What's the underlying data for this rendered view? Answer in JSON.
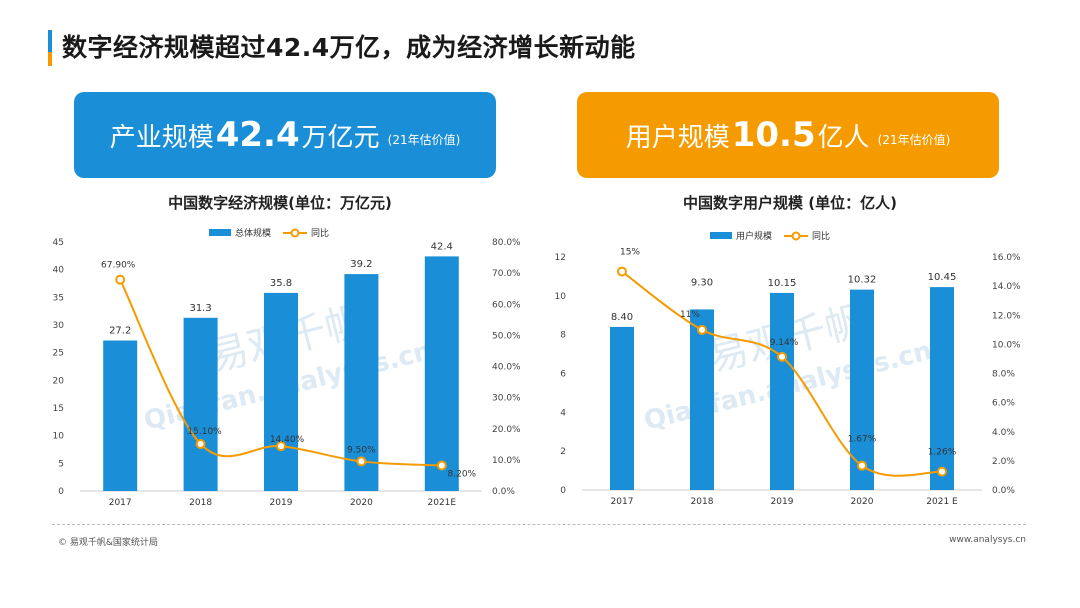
{
  "page": {
    "title": "数字经济规模超过42.4万亿，成为经济增长新动能",
    "source": "© 易观千帆&国家统计局",
    "site": "www.analysys.cn",
    "colors": {
      "blue": "#1a8fd8",
      "orange": "#f59b00",
      "line": "#f59b00"
    }
  },
  "banners": [
    {
      "prefix": "产业规模",
      "value": "42.4",
      "unit": "万亿元",
      "note": "(21年估价值)"
    },
    {
      "prefix": "用户规模",
      "value": "10.5",
      "unit": "亿人",
      "note": "(21年估价值)"
    }
  ],
  "chart_data": [
    {
      "type": "bar",
      "title": "中国数字经济规模(单位：万亿元)",
      "categories": [
        "2017",
        "2018",
        "2019",
        "2020",
        "2021E"
      ],
      "series": [
        {
          "name": "总体规模",
          "kind": "bar",
          "axis": "left",
          "values": [
            27.2,
            31.3,
            35.8,
            39.2,
            42.4
          ],
          "labels": [
            "27.2",
            "31.3",
            "35.8",
            "39.2",
            "42.4"
          ]
        },
        {
          "name": "同比",
          "kind": "line",
          "axis": "right",
          "values": [
            67.9,
            15.1,
            14.4,
            9.5,
            8.2
          ],
          "labels": [
            "67.90%",
            "15.10%",
            "14.40%",
            "9.50%",
            "8.20%"
          ]
        }
      ],
      "ylim": [
        0,
        45
      ],
      "yticks": [
        "0",
        "5",
        "10",
        "15",
        "20",
        "25",
        "30",
        "35",
        "40",
        "45"
      ],
      "y2lim": [
        0,
        80
      ],
      "y2ticks": [
        "0.0%",
        "10.0%",
        "20.0%",
        "30.0%",
        "40.0%",
        "50.0%",
        "60.0%",
        "70.0%",
        "80.0%"
      ],
      "legend": "top-center"
    },
    {
      "type": "bar",
      "title": "中国数字用户规模 (单位：亿人)",
      "categories": [
        "2017",
        "2018",
        "2019",
        "2020",
        "2021 E"
      ],
      "series": [
        {
          "name": "用户规模",
          "kind": "bar",
          "axis": "left",
          "values": [
            8.4,
            9.3,
            10.15,
            10.32,
            10.45
          ],
          "labels": [
            "8.40",
            "9.30",
            "10.15",
            "10.32",
            "10.45"
          ]
        },
        {
          "name": "同比",
          "kind": "line",
          "axis": "right",
          "values": [
            15,
            11,
            9.14,
            1.67,
            1.26
          ],
          "labels": [
            "15%",
            "11%",
            "9.14%",
            "1.67%",
            "1.26%"
          ]
        }
      ],
      "ylim": [
        0,
        12
      ],
      "yticks": [
        "0",
        "2",
        "4",
        "6",
        "8",
        "10",
        "12"
      ],
      "y2lim": [
        0,
        16
      ],
      "y2ticks": [
        "0.0%",
        "2.0%",
        "4.0%",
        "6.0%",
        "8.0%",
        "10.0%",
        "12.0%",
        "14.0%",
        "16.0%"
      ],
      "legend": "top-center"
    }
  ],
  "watermark": [
    "易观千帆",
    "Qianfan.analysys.cn"
  ]
}
